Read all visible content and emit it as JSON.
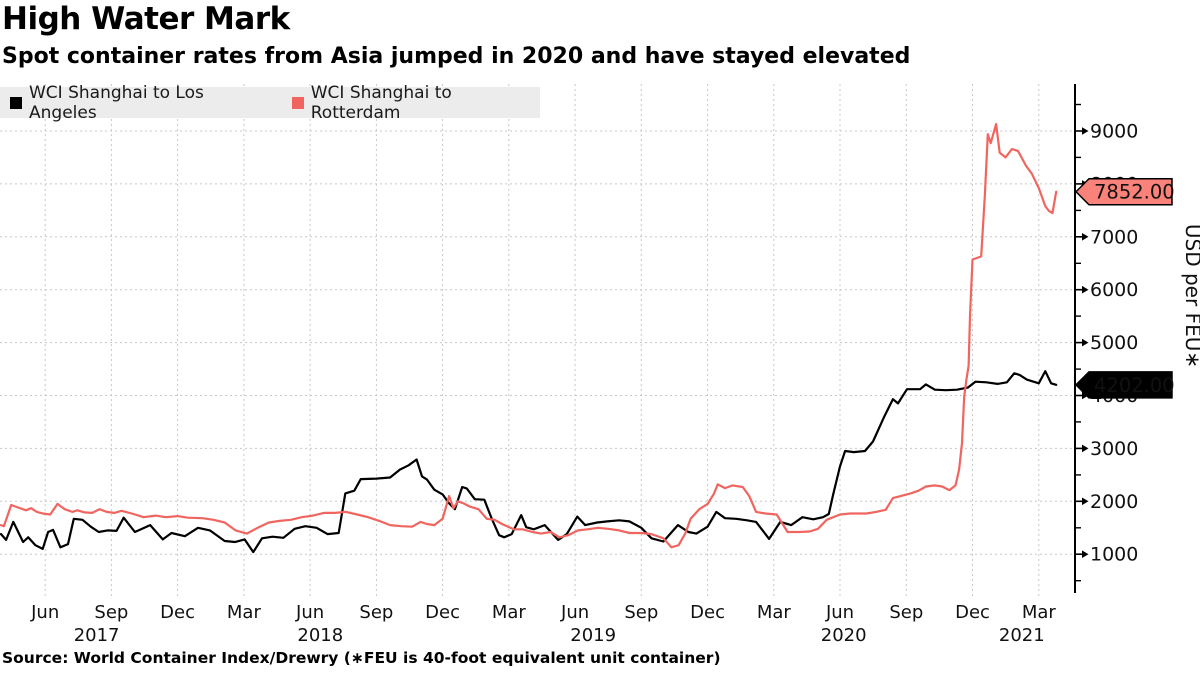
{
  "title": "High Water Mark",
  "subtitle": "Spot container rates from Asia jumped in 2020 and have stayed elevated",
  "source": "Source: World Container Index/Drewry (∗FEU is 40-foot equivalent unit container)",
  "legend": {
    "items": [
      {
        "label": "WCI Shanghai to Los Angeles",
        "color": "#000000"
      },
      {
        "label": "WCI Shanghai to Rotterdam",
        "color": "#f0655f"
      }
    ]
  },
  "colors": {
    "grid": "#c8c8c8",
    "axis": "#000000",
    "legend_bg": "#ececec",
    "tag_red_bg": "#f9837a",
    "tag_black_bg": "#000000"
  },
  "chart_data": {
    "type": "line",
    "title": "High Water Mark",
    "ylabel": "USD per FEU∗",
    "xlabel": "",
    "grid": true,
    "legend_position": "top-left",
    "ylim": [
      400,
      9800
    ],
    "x_domain": [
      "2017-04-01",
      "2021-05-20"
    ],
    "y_ticks": [
      1000,
      2000,
      3000,
      4000,
      5000,
      6000,
      7000,
      8000,
      9000
    ],
    "y_minor_tick_step": 500,
    "x_ticks": [
      {
        "d": "2017-06-01",
        "label": "Jun"
      },
      {
        "d": "2017-09-01",
        "label": "Sep"
      },
      {
        "d": "2017-12-01",
        "label": "Dec"
      },
      {
        "d": "2018-03-01",
        "label": "Mar"
      },
      {
        "d": "2018-06-01",
        "label": "Jun"
      },
      {
        "d": "2018-09-01",
        "label": "Sep"
      },
      {
        "d": "2018-12-01",
        "label": "Dec"
      },
      {
        "d": "2019-03-01",
        "label": "Mar"
      },
      {
        "d": "2019-06-01",
        "label": "Jun"
      },
      {
        "d": "2019-09-01",
        "label": "Sep"
      },
      {
        "d": "2019-12-01",
        "label": "Dec"
      },
      {
        "d": "2020-03-01",
        "label": "Mar"
      },
      {
        "d": "2020-06-01",
        "label": "Jun"
      },
      {
        "d": "2020-09-01",
        "label": "Sep"
      },
      {
        "d": "2020-12-01",
        "label": "Dec"
      },
      {
        "d": "2021-03-01",
        "label": "Mar"
      }
    ],
    "year_labels": [
      {
        "d": "2017-08-11",
        "label": "2017"
      },
      {
        "d": "2018-06-15",
        "label": "2018"
      },
      {
        "d": "2019-06-26",
        "label": "2019"
      },
      {
        "d": "2020-06-06",
        "label": "2020"
      },
      {
        "d": "2021-02-08",
        "label": "2021"
      }
    ],
    "series": [
      {
        "id": "la",
        "name": "WCI Shanghai to Los Angeles",
        "color": "#000000",
        "tag": {
          "text": "4202.00",
          "value": 4202,
          "bg": "#000000",
          "fg": "#ffffff"
        },
        "points": [
          [
            "2017-04-01",
            1380
          ],
          [
            "2017-04-08",
            1270
          ],
          [
            "2017-04-18",
            1610
          ],
          [
            "2017-05-01",
            1230
          ],
          [
            "2017-05-08",
            1320
          ],
          [
            "2017-05-18",
            1170
          ],
          [
            "2017-05-28",
            1100
          ],
          [
            "2017-06-05",
            1420
          ],
          [
            "2017-06-12",
            1460
          ],
          [
            "2017-06-22",
            1130
          ],
          [
            "2017-07-02",
            1190
          ],
          [
            "2017-07-10",
            1670
          ],
          [
            "2017-07-22",
            1650
          ],
          [
            "2017-08-03",
            1520
          ],
          [
            "2017-08-14",
            1420
          ],
          [
            "2017-08-26",
            1450
          ],
          [
            "2017-09-08",
            1440
          ],
          [
            "2017-09-18",
            1690
          ],
          [
            "2017-10-03",
            1420
          ],
          [
            "2017-10-24",
            1550
          ],
          [
            "2017-11-11",
            1280
          ],
          [
            "2017-11-23",
            1400
          ],
          [
            "2017-12-11",
            1340
          ],
          [
            "2017-12-29",
            1500
          ],
          [
            "2018-01-15",
            1450
          ],
          [
            "2018-02-05",
            1250
          ],
          [
            "2018-02-19",
            1230
          ],
          [
            "2018-03-02",
            1280
          ],
          [
            "2018-03-14",
            1040
          ],
          [
            "2018-03-26",
            1300
          ],
          [
            "2018-04-10",
            1330
          ],
          [
            "2018-04-25",
            1310
          ],
          [
            "2018-05-10",
            1480
          ],
          [
            "2018-05-25",
            1530
          ],
          [
            "2018-06-10",
            1500
          ],
          [
            "2018-06-25",
            1380
          ],
          [
            "2018-07-10",
            1400
          ],
          [
            "2018-07-19",
            2150
          ],
          [
            "2018-08-01",
            2200
          ],
          [
            "2018-08-10",
            2420
          ],
          [
            "2018-09-01",
            2430
          ],
          [
            "2018-09-20",
            2450
          ],
          [
            "2018-10-03",
            2600
          ],
          [
            "2018-10-15",
            2680
          ],
          [
            "2018-10-26",
            2790
          ],
          [
            "2018-11-03",
            2470
          ],
          [
            "2018-11-10",
            2410
          ],
          [
            "2018-11-20",
            2220
          ],
          [
            "2018-12-01",
            2130
          ],
          [
            "2018-12-10",
            1960
          ],
          [
            "2018-12-18",
            1850
          ],
          [
            "2018-12-28",
            2270
          ],
          [
            "2019-01-04",
            2240
          ],
          [
            "2019-01-15",
            2040
          ],
          [
            "2019-01-28",
            2030
          ],
          [
            "2019-02-08",
            1670
          ],
          [
            "2019-02-18",
            1360
          ],
          [
            "2019-02-25",
            1320
          ],
          [
            "2019-03-05",
            1380
          ],
          [
            "2019-03-18",
            1740
          ],
          [
            "2019-03-25",
            1510
          ],
          [
            "2019-04-05",
            1470
          ],
          [
            "2019-04-20",
            1550
          ],
          [
            "2019-05-08",
            1270
          ],
          [
            "2019-05-20",
            1380
          ],
          [
            "2019-06-04",
            1710
          ],
          [
            "2019-06-15",
            1550
          ],
          [
            "2019-07-01",
            1600
          ],
          [
            "2019-07-15",
            1620
          ],
          [
            "2019-08-01",
            1640
          ],
          [
            "2019-08-15",
            1620
          ],
          [
            "2019-09-01",
            1500
          ],
          [
            "2019-09-15",
            1300
          ],
          [
            "2019-10-01",
            1240
          ],
          [
            "2019-10-21",
            1550
          ],
          [
            "2019-11-05",
            1420
          ],
          [
            "2019-11-16",
            1390
          ],
          [
            "2019-12-01",
            1520
          ],
          [
            "2019-12-13",
            1800
          ],
          [
            "2019-12-25",
            1680
          ],
          [
            "2020-01-10",
            1670
          ],
          [
            "2020-01-25",
            1640
          ],
          [
            "2020-02-07",
            1610
          ],
          [
            "2020-02-25",
            1290
          ],
          [
            "2020-03-10",
            1610
          ],
          [
            "2020-03-25",
            1550
          ],
          [
            "2020-04-10",
            1700
          ],
          [
            "2020-04-25",
            1660
          ],
          [
            "2020-05-08",
            1700
          ],
          [
            "2020-05-16",
            1760
          ],
          [
            "2020-05-22",
            2130
          ],
          [
            "2020-06-01",
            2660
          ],
          [
            "2020-06-08",
            2950
          ],
          [
            "2020-06-20",
            2930
          ],
          [
            "2020-07-05",
            2950
          ],
          [
            "2020-07-16",
            3130
          ],
          [
            "2020-08-01",
            3600
          ],
          [
            "2020-08-13",
            3930
          ],
          [
            "2020-08-20",
            3850
          ],
          [
            "2020-09-02",
            4120
          ],
          [
            "2020-09-20",
            4120
          ],
          [
            "2020-09-28",
            4210
          ],
          [
            "2020-10-10",
            4110
          ],
          [
            "2020-10-25",
            4100
          ],
          [
            "2020-11-10",
            4110
          ],
          [
            "2020-11-25",
            4150
          ],
          [
            "2020-12-05",
            4260
          ],
          [
            "2020-12-20",
            4250
          ],
          [
            "2021-01-05",
            4220
          ],
          [
            "2021-01-18",
            4250
          ],
          [
            "2021-01-28",
            4420
          ],
          [
            "2021-02-05",
            4390
          ],
          [
            "2021-02-15",
            4300
          ],
          [
            "2021-03-01",
            4230
          ],
          [
            "2021-03-10",
            4460
          ],
          [
            "2021-03-18",
            4230
          ],
          [
            "2021-03-25",
            4202
          ]
        ]
      },
      {
        "id": "rotterdam",
        "name": "WCI Shanghai to Rotterdam",
        "color": "#f0655f",
        "tag": {
          "text": "7852.00",
          "value": 7852,
          "bg": "#f9837a",
          "fg": "#000000"
        },
        "points": [
          [
            "2017-04-01",
            1550
          ],
          [
            "2017-04-05",
            1530
          ],
          [
            "2017-04-15",
            1930
          ],
          [
            "2017-04-25",
            1880
          ],
          [
            "2017-05-05",
            1830
          ],
          [
            "2017-05-12",
            1870
          ],
          [
            "2017-05-20",
            1800
          ],
          [
            "2017-05-28",
            1770
          ],
          [
            "2017-06-08",
            1750
          ],
          [
            "2017-06-18",
            1950
          ],
          [
            "2017-06-28",
            1850
          ],
          [
            "2017-07-08",
            1800
          ],
          [
            "2017-07-15",
            1830
          ],
          [
            "2017-07-25",
            1790
          ],
          [
            "2017-08-05",
            1780
          ],
          [
            "2017-08-15",
            1850
          ],
          [
            "2017-08-25",
            1800
          ],
          [
            "2017-09-05",
            1780
          ],
          [
            "2017-09-15",
            1820
          ],
          [
            "2017-10-01",
            1760
          ],
          [
            "2017-10-15",
            1700
          ],
          [
            "2017-11-01",
            1730
          ],
          [
            "2017-11-15",
            1700
          ],
          [
            "2017-12-01",
            1720
          ],
          [
            "2017-12-15",
            1690
          ],
          [
            "2018-01-05",
            1680
          ],
          [
            "2018-01-20",
            1650
          ],
          [
            "2018-02-05",
            1600
          ],
          [
            "2018-02-20",
            1450
          ],
          [
            "2018-03-05",
            1390
          ],
          [
            "2018-03-20",
            1500
          ],
          [
            "2018-04-05",
            1600
          ],
          [
            "2018-04-20",
            1630
          ],
          [
            "2018-05-05",
            1650
          ],
          [
            "2018-05-20",
            1700
          ],
          [
            "2018-06-05",
            1730
          ],
          [
            "2018-06-20",
            1780
          ],
          [
            "2018-07-05",
            1780
          ],
          [
            "2018-07-20",
            1800
          ],
          [
            "2018-08-05",
            1750
          ],
          [
            "2018-08-20",
            1700
          ],
          [
            "2018-09-05",
            1630
          ],
          [
            "2018-09-20",
            1550
          ],
          [
            "2018-10-05",
            1530
          ],
          [
            "2018-10-20",
            1520
          ],
          [
            "2018-11-01",
            1610
          ],
          [
            "2018-11-10",
            1570
          ],
          [
            "2018-11-20",
            1550
          ],
          [
            "2018-12-01",
            1670
          ],
          [
            "2018-12-10",
            2100
          ],
          [
            "2018-12-16",
            1870
          ],
          [
            "2018-12-22",
            2000
          ],
          [
            "2018-12-30",
            1960
          ],
          [
            "2019-01-08",
            1900
          ],
          [
            "2019-01-20",
            1850
          ],
          [
            "2019-02-01",
            1670
          ],
          [
            "2019-02-12",
            1650
          ],
          [
            "2019-02-22",
            1570
          ],
          [
            "2019-03-08",
            1470
          ],
          [
            "2019-03-20",
            1470
          ],
          [
            "2019-04-03",
            1420
          ],
          [
            "2019-04-15",
            1390
          ],
          [
            "2019-04-28",
            1420
          ],
          [
            "2019-05-10",
            1320
          ],
          [
            "2019-05-22",
            1360
          ],
          [
            "2019-06-05",
            1450
          ],
          [
            "2019-06-18",
            1470
          ],
          [
            "2019-07-02",
            1500
          ],
          [
            "2019-07-16",
            1480
          ],
          [
            "2019-08-01",
            1450
          ],
          [
            "2019-08-15",
            1400
          ],
          [
            "2019-09-01",
            1400
          ],
          [
            "2019-09-15",
            1380
          ],
          [
            "2019-10-01",
            1300
          ],
          [
            "2019-10-12",
            1130
          ],
          [
            "2019-10-22",
            1170
          ],
          [
            "2019-11-01",
            1400
          ],
          [
            "2019-11-08",
            1670
          ],
          [
            "2019-11-20",
            1850
          ],
          [
            "2019-12-01",
            1950
          ],
          [
            "2019-12-10",
            2150
          ],
          [
            "2019-12-15",
            2320
          ],
          [
            "2019-12-25",
            2250
          ],
          [
            "2020-01-05",
            2300
          ],
          [
            "2020-01-19",
            2270
          ],
          [
            "2020-01-28",
            2100
          ],
          [
            "2020-02-07",
            1800
          ],
          [
            "2020-02-20",
            1770
          ],
          [
            "2020-03-05",
            1750
          ],
          [
            "2020-03-20",
            1420
          ],
          [
            "2020-04-05",
            1420
          ],
          [
            "2020-04-20",
            1430
          ],
          [
            "2020-05-01",
            1480
          ],
          [
            "2020-05-13",
            1650
          ],
          [
            "2020-06-01",
            1750
          ],
          [
            "2020-06-15",
            1770
          ],
          [
            "2020-07-07",
            1770
          ],
          [
            "2020-07-20",
            1800
          ],
          [
            "2020-08-03",
            1840
          ],
          [
            "2020-08-13",
            2060
          ],
          [
            "2020-09-07",
            2150
          ],
          [
            "2020-09-18",
            2200
          ],
          [
            "2020-09-28",
            2280
          ],
          [
            "2020-10-10",
            2300
          ],
          [
            "2020-10-20",
            2280
          ],
          [
            "2020-10-30",
            2210
          ],
          [
            "2020-11-08",
            2300
          ],
          [
            "2020-11-13",
            2600
          ],
          [
            "2020-11-17",
            3100
          ],
          [
            "2020-11-20",
            3980
          ],
          [
            "2020-11-23",
            4300
          ],
          [
            "2020-11-26",
            4560
          ],
          [
            "2020-11-28",
            5500
          ],
          [
            "2020-12-01",
            6570
          ],
          [
            "2020-12-07",
            6600
          ],
          [
            "2020-12-13",
            6630
          ],
          [
            "2020-12-18",
            7800
          ],
          [
            "2020-12-22",
            8940
          ],
          [
            "2020-12-26",
            8770
          ],
          [
            "2021-01-03",
            9130
          ],
          [
            "2021-01-08",
            8590
          ],
          [
            "2021-01-16",
            8500
          ],
          [
            "2021-01-25",
            8660
          ],
          [
            "2021-02-03",
            8620
          ],
          [
            "2021-02-14",
            8340
          ],
          [
            "2021-02-22",
            8190
          ],
          [
            "2021-03-01",
            7920
          ],
          [
            "2021-03-10",
            7580
          ],
          [
            "2021-03-15",
            7490
          ],
          [
            "2021-03-20",
            7450
          ],
          [
            "2021-03-25",
            7852
          ]
        ]
      }
    ]
  }
}
